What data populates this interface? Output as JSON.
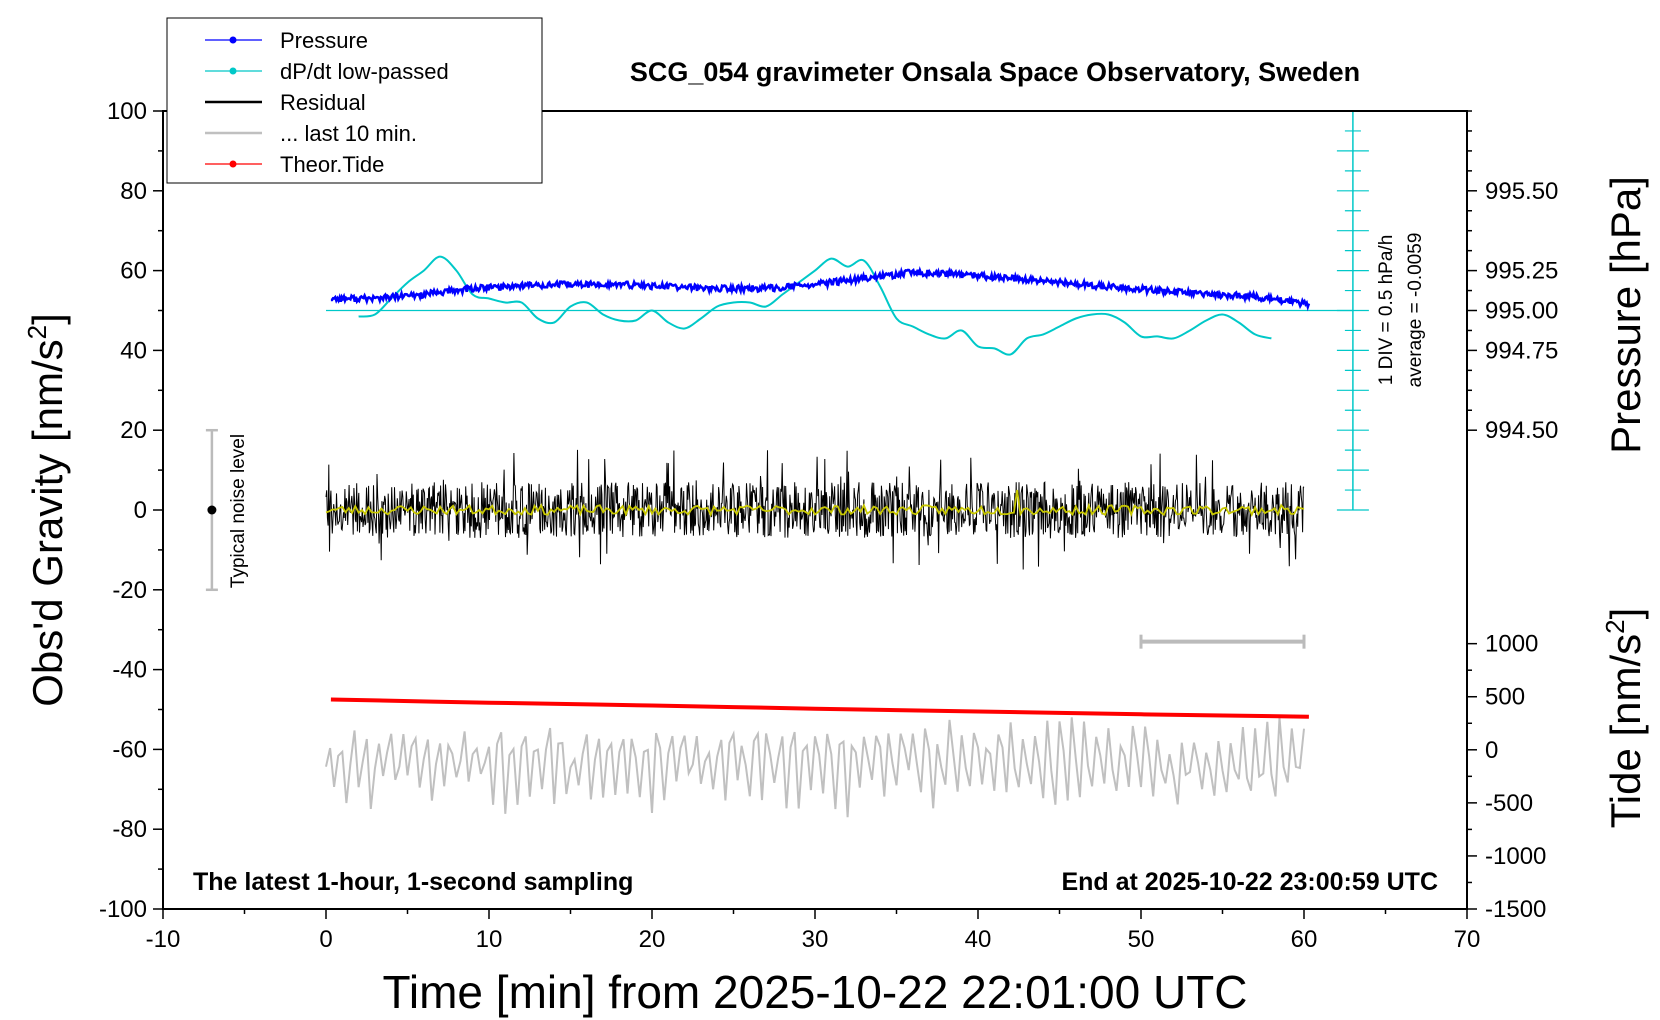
{
  "chart_data": {
    "type": "line",
    "title": "SCG_054 gravimeter Onsala Space Observatory, Sweden",
    "xlabel": "Time [min] from 2025-10-22 22:01:00 UTC",
    "ylabel_left_main": "Obs'd Gravity [nm/s",
    "ylabel_left_sup": "2",
    "ylabel_left_close": "]",
    "ylabel_right_top": "Pressure [hPa]",
    "ylabel_right_bottom_main": "Tide [nm/s",
    "ylabel_right_bottom_sup": "2",
    "ylabel_right_bottom_close": "]",
    "xlim": [
      -10,
      70
    ],
    "ylim": [
      -100,
      100
    ],
    "xticks": [
      -10,
      0,
      10,
      20,
      30,
      40,
      50,
      60,
      70
    ],
    "yticks": [
      -100,
      -80,
      -60,
      -40,
      -20,
      0,
      20,
      40,
      60,
      80,
      100
    ],
    "pressure_axis": {
      "ticks": [
        "994.50",
        "994.75",
        "995.00",
        "995.25",
        "995.50"
      ],
      "tick_gravity_positions": [
        20,
        40,
        50,
        60,
        80
      ]
    },
    "tide_axis": {
      "ticks": [
        "-1500",
        "-1000",
        "-500",
        "0",
        "500",
        "1000"
      ]
    },
    "legend": {
      "position": "top-left",
      "entries": [
        {
          "label": "Pressure",
          "color": "#0000ff",
          "marker": true
        },
        {
          "label": "dP/dt low-passed",
          "color": "#00c8c8",
          "marker": true
        },
        {
          "label": "Residual",
          "color": "#000000",
          "marker": false
        },
        {
          "label": "... last 10 min.",
          "color": "#c0c0c0",
          "marker": false
        },
        {
          "label": "Theor.Tide",
          "color": "#ff0000",
          "marker": true
        }
      ]
    },
    "annotations": {
      "bottom_left": "The latest 1-hour, 1-second sampling",
      "bottom_right": "End at 2025-10-22 23:00:59 UTC",
      "noise_label": "Typical noise level",
      "dpdt_scale": "1 DIV = 0.5 hPa/h",
      "dpdt_average": "average = -0.0059"
    },
    "series": [
      {
        "name": "Pressure",
        "color": "#0000ff",
        "x": [
          0.3,
          3,
          6,
          9,
          12,
          15,
          18,
          21,
          24,
          27,
          30,
          33,
          36,
          39,
          42,
          45,
          48,
          51,
          54,
          57,
          60.3
        ],
        "y": [
          53,
          53,
          54,
          55.5,
          56.3,
          56.5,
          56.5,
          56,
          55.5,
          55.5,
          56.5,
          58,
          59.5,
          59,
          58,
          57,
          56,
          55,
          54,
          53.5,
          51.5
        ]
      },
      {
        "name": "dP/dt low-passed",
        "color": "#00c8c8",
        "x": [
          2,
          3,
          4,
          5,
          6,
          7,
          8,
          9,
          10,
          11,
          12,
          13,
          14,
          15,
          16,
          17,
          18,
          19,
          20,
          21,
          22,
          23,
          24,
          25,
          26,
          27,
          28,
          29,
          30,
          31,
          32,
          33,
          34,
          35,
          36,
          37,
          38,
          39,
          40,
          41,
          42,
          43,
          44,
          45,
          46,
          47,
          48,
          49,
          50,
          51,
          52,
          53,
          54,
          55,
          56,
          57,
          58
        ],
        "y": [
          48.5,
          49,
          53,
          57,
          60,
          63.5,
          60,
          54,
          53,
          52,
          52,
          48,
          47,
          51,
          52,
          49,
          47.5,
          47.5,
          50,
          47,
          45.5,
          48,
          51,
          52,
          52,
          51,
          54,
          57,
          60,
          63,
          61,
          62.5,
          56,
          48,
          46,
          44,
          43,
          45,
          41,
          40.5,
          39,
          43,
          44,
          46,
          48,
          49,
          49,
          47,
          43.5,
          43.5,
          43,
          45,
          47.5,
          49,
          47,
          44,
          43
        ]
      },
      {
        "name": "Residual",
        "color": "#000000",
        "x_range": [
          0,
          60
        ],
        "center": 0,
        "amplitude_range": [
          -17,
          17
        ]
      },
      {
        "name": "Residual smoothed",
        "color": "#c8c800",
        "x_range": [
          0,
          60
        ],
        "center": 0,
        "amplitude_range": [
          -2,
          5
        ]
      },
      {
        "name": "Theor.Tide",
        "color": "#ff0000",
        "x": [
          0.3,
          10,
          20,
          30,
          40,
          50,
          60.3
        ],
        "y": [
          -47.5,
          -48.3,
          -49,
          -49.8,
          -50.5,
          -51.2,
          -51.8
        ]
      },
      {
        "name": "... last 10 min.",
        "color": "#c0c0c0",
        "x_range": [
          0,
          60
        ],
        "center": -63,
        "amplitude_range": [
          -77,
          -47
        ]
      }
    ],
    "noise_bar": {
      "x": -7,
      "y_min": -20,
      "y_max": 20,
      "y_center": 0
    },
    "time_scale_bar": {
      "x_start": 50,
      "x_end": 60,
      "y": -33
    },
    "dpdt_scale_axis": {
      "x": 63,
      "y_top": 100,
      "y_bottom": 0,
      "zero_line_y": 50
    }
  }
}
